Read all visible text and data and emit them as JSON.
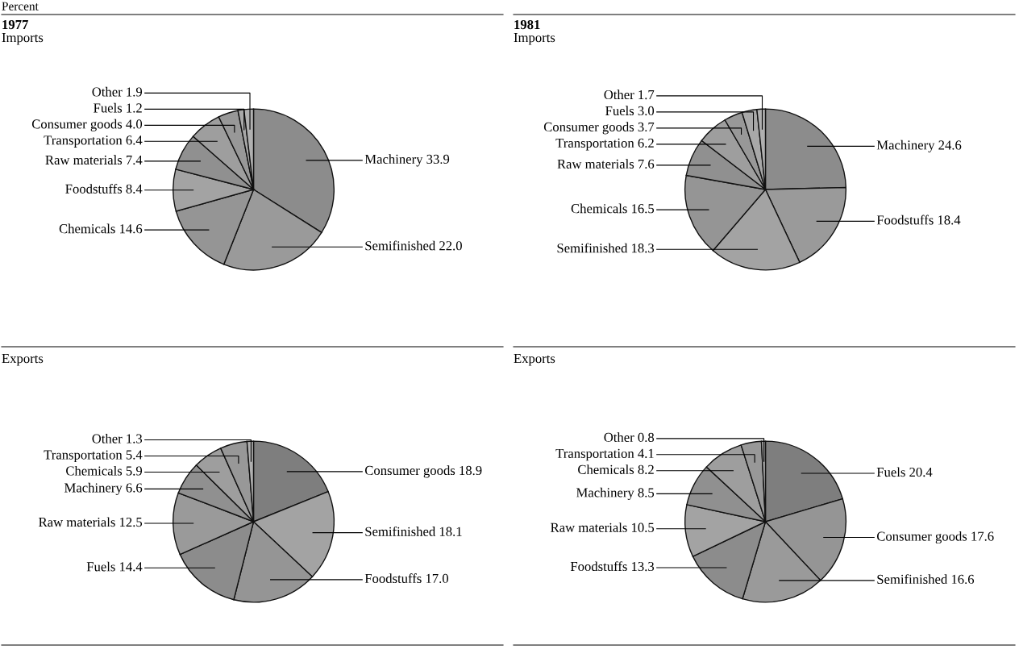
{
  "chart_data": [
    {
      "type": "pie",
      "title": "1977",
      "subtitle": "Imports",
      "annotations": [
        "Percent"
      ],
      "categories": [
        "Machinery",
        "Semifinished",
        "Chemicals",
        "Foodstuffs",
        "Raw materials",
        "Transportation",
        "Consumer goods",
        "Fuels",
        "Other"
      ],
      "values": [
        33.9,
        22.0,
        14.6,
        8.4,
        7.4,
        6.4,
        4.0,
        1.2,
        1.9
      ],
      "value_labels": [
        "33.9",
        "22.0",
        "14.6",
        "8.4",
        "7.4",
        "6.4",
        "4.0",
        "1.2",
        "1.9"
      ],
      "colors": [
        "#8c8c8c",
        "#9a9a9a",
        "#959595",
        "#a3a3a3",
        "#909090",
        "#9e9e9e",
        "#989898",
        "#a8a8a8",
        "#b0b0b0"
      ]
    },
    {
      "type": "pie",
      "title": "1981",
      "subtitle": "Imports",
      "categories": [
        "Machinery",
        "Foodstuffs",
        "Semifinished",
        "Chemicals",
        "Raw materials",
        "Transportation",
        "Consumer goods",
        "Fuels",
        "Other"
      ],
      "values": [
        24.6,
        18.4,
        18.3,
        16.5,
        7.6,
        6.2,
        3.7,
        3.0,
        1.7
      ],
      "value_labels": [
        "24.6",
        "18.4",
        "18.3",
        "16.5",
        "7.6",
        "6.2",
        "3.7",
        "3.0",
        "1.7"
      ],
      "colors": [
        "#8c8c8c",
        "#9a9a9a",
        "#a3a3a3",
        "#959595",
        "#909090",
        "#9e9e9e",
        "#989898",
        "#a8a8a8",
        "#b0b0b0"
      ]
    },
    {
      "type": "pie",
      "subtitle": "Exports",
      "categories": [
        "Consumer goods",
        "Semifinished",
        "Foodstuffs",
        "Fuels",
        "Raw materials",
        "Machinery",
        "Chemicals",
        "Transportation",
        "Other"
      ],
      "values": [
        18.9,
        18.1,
        17.0,
        14.4,
        12.5,
        6.6,
        5.9,
        5.4,
        1.3
      ],
      "value_labels": [
        "18.9",
        "18.1",
        "17.0",
        "14.4",
        "12.5",
        "6.6",
        "5.9",
        "5.4",
        "1.3"
      ],
      "colors": [
        "#7e7e7e",
        "#a3a3a3",
        "#959595",
        "#8c8c8c",
        "#9a9a9a",
        "#909090",
        "#9e9e9e",
        "#989898",
        "#b0b0b0"
      ]
    },
    {
      "type": "pie",
      "subtitle": "Exports",
      "categories": [
        "Fuels",
        "Consumer goods",
        "Semifinished",
        "Foodstuffs",
        "Raw materials",
        "Machinery",
        "Chemicals",
        "Transportation",
        "Other"
      ],
      "values": [
        20.4,
        17.6,
        16.6,
        13.3,
        10.5,
        8.5,
        8.2,
        4.1,
        0.8
      ],
      "value_labels": [
        "20.4",
        "17.6",
        "16.6",
        "13.3",
        "10.5",
        "8.5",
        "8.2",
        "4.1",
        "0.8"
      ],
      "colors": [
        "#7e7e7e",
        "#959595",
        "#9a9a9a",
        "#8c8c8c",
        "#a3a3a3",
        "#909090",
        "#9e9e9e",
        "#989898",
        "#b0b0b0"
      ]
    }
  ]
}
